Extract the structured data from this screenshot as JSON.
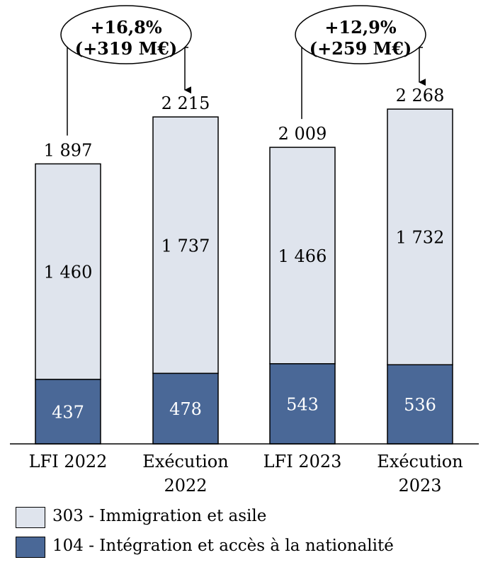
{
  "chart_data": {
    "type": "bar",
    "stacked": true,
    "categories": [
      [
        "LFI 2022"
      ],
      [
        "Exécution",
        "2022"
      ],
      [
        "LFI 2023"
      ],
      [
        "Exécution",
        "2023"
      ]
    ],
    "series": [
      {
        "name": "104 - Intégration et accès à la nationalité",
        "values": [
          437,
          478,
          543,
          536
        ],
        "labels": [
          "437",
          "478",
          "543",
          "536"
        ],
        "color": "#4a6897"
      },
      {
        "name": "303 - Immigration et asile",
        "values": [
          1460,
          1737,
          1466,
          1732
        ],
        "labels": [
          "1 460",
          "1 737",
          "1 466",
          "1 732"
        ],
        "color": "#dfe4ed"
      }
    ],
    "totals": [
      1897,
      2215,
      2009,
      2268
    ],
    "total_labels": [
      "1 897",
      "2 215",
      "2 009",
      "2 268"
    ],
    "ylim": [
      0,
      2600
    ],
    "annotations": [
      {
        "from": 0,
        "to": 1,
        "lines": [
          "+16,8%",
          "(+319 M€)"
        ]
      },
      {
        "from": 2,
        "to": 3,
        "lines": [
          "+12,9%",
          "(+259 M€)"
        ]
      }
    ],
    "legend": {
      "position": "bottom-left"
    },
    "grid": false
  },
  "colors": {
    "series_104": "#4a6897",
    "series_303": "#dfe4ed",
    "border": "#000000",
    "text_on_dark": "#ffffff",
    "text": "#000000"
  }
}
